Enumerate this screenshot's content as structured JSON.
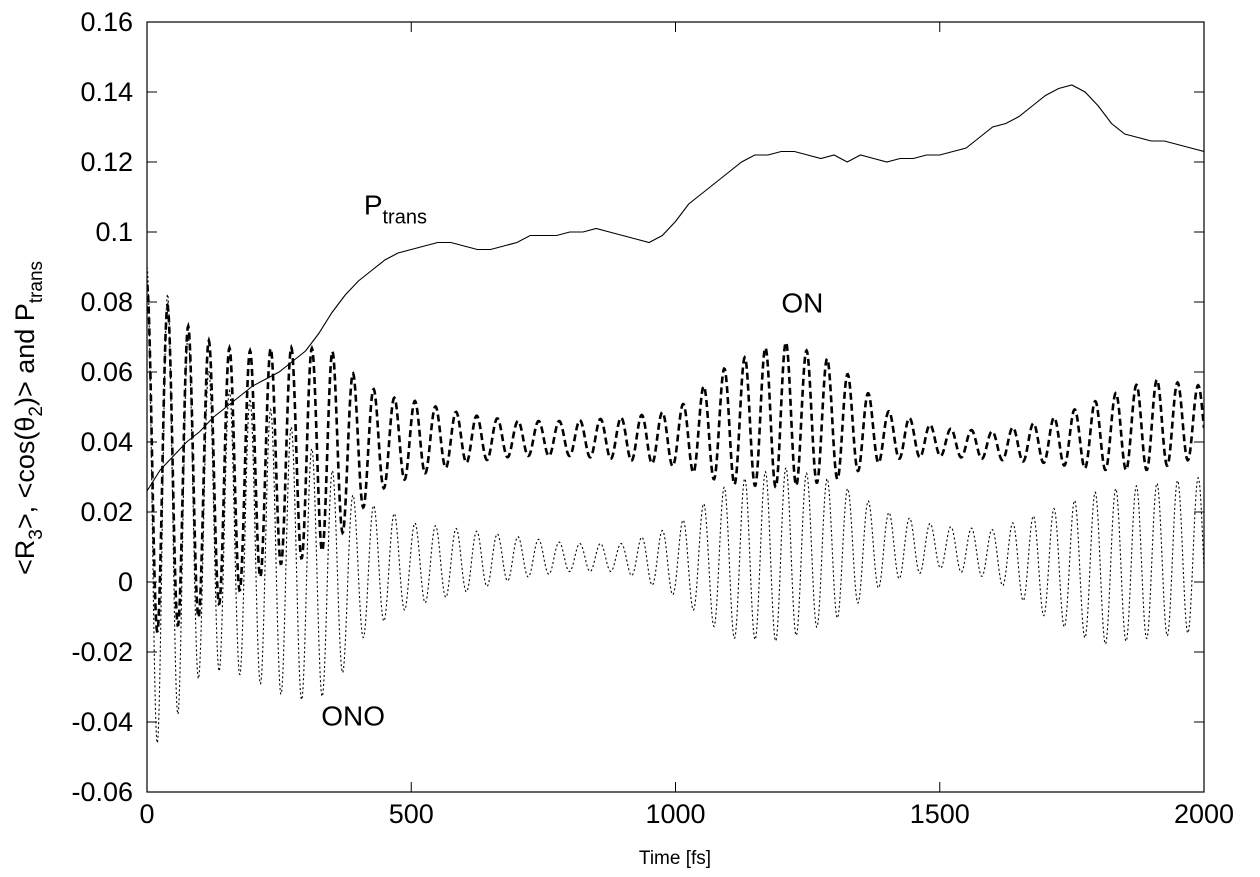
{
  "chart_data": {
    "type": "line",
    "title": "",
    "xlabel": "Time [fs]",
    "ylabel": {
      "parts": [
        {
          "text": "<R",
          "shift": "normal"
        },
        {
          "text": "3",
          "shift": "sub"
        },
        {
          "text": ">, <cos(θ",
          "shift": "normal"
        },
        {
          "text": "2",
          "shift": "sub"
        },
        {
          "text": ")> and P",
          "shift": "normal"
        },
        {
          "text": "trans",
          "shift": "sub"
        }
      ]
    },
    "xlim": [
      0,
      2000
    ],
    "ylim": [
      -0.06,
      0.16
    ],
    "x_ticks": [
      0,
      500,
      1000,
      1500,
      2000
    ],
    "x_tick_labels": [
      "0",
      "500",
      "1000",
      "1500",
      "2000"
    ],
    "y_ticks": [
      -0.06,
      -0.04,
      -0.02,
      0,
      0.02,
      0.04,
      0.06,
      0.08,
      0.1,
      0.12,
      0.14,
      0.16
    ],
    "y_tick_labels": [
      "-0.06",
      "-0.04",
      "-0.02",
      "0",
      "0.02",
      "0.04",
      "0.06",
      "0.08",
      "0.1",
      "0.12",
      "0.14",
      "0.16"
    ],
    "grid": false,
    "annotations": [
      {
        "id": "ptrans",
        "main": "P",
        "sub": "trans",
        "x": 470,
        "y": 0.105
      },
      {
        "id": "on",
        "main": "ON",
        "sub": "",
        "x": 1240,
        "y": 0.077
      },
      {
        "id": "ono",
        "main": "ONO",
        "sub": "",
        "x": 390,
        "y": -0.041
      }
    ],
    "series": [
      {
        "id": "ptrans",
        "style": "solid",
        "x": [
          0,
          25,
          50,
          75,
          100,
          125,
          150,
          175,
          200,
          225,
          250,
          275,
          300,
          325,
          350,
          375,
          400,
          425,
          450,
          475,
          500,
          525,
          550,
          575,
          600,
          625,
          650,
          675,
          700,
          725,
          750,
          775,
          800,
          825,
          850,
          875,
          900,
          925,
          950,
          975,
          1000,
          1025,
          1050,
          1075,
          1100,
          1125,
          1150,
          1175,
          1200,
          1225,
          1250,
          1275,
          1300,
          1325,
          1350,
          1375,
          1400,
          1425,
          1450,
          1475,
          1500,
          1525,
          1550,
          1575,
          1600,
          1625,
          1650,
          1675,
          1700,
          1725,
          1750,
          1775,
          1800,
          1825,
          1850,
          1875,
          1900,
          1925,
          1950,
          1975,
          2000
        ],
        "y": [
          0.026,
          0.032,
          0.036,
          0.04,
          0.043,
          0.047,
          0.05,
          0.053,
          0.056,
          0.058,
          0.06,
          0.063,
          0.066,
          0.071,
          0.077,
          0.082,
          0.086,
          0.089,
          0.092,
          0.094,
          0.095,
          0.096,
          0.097,
          0.097,
          0.096,
          0.095,
          0.095,
          0.096,
          0.097,
          0.099,
          0.099,
          0.099,
          0.1,
          0.1,
          0.101,
          0.1,
          0.099,
          0.098,
          0.097,
          0.099,
          0.103,
          0.108,
          0.111,
          0.114,
          0.117,
          0.12,
          0.122,
          0.122,
          0.123,
          0.123,
          0.122,
          0.121,
          0.122,
          0.12,
          0.122,
          0.121,
          0.12,
          0.121,
          0.121,
          0.122,
          0.122,
          0.123,
          0.124,
          0.127,
          0.13,
          0.131,
          0.133,
          0.136,
          0.139,
          0.141,
          0.142,
          0.14,
          0.136,
          0.131,
          0.128,
          0.127,
          0.126,
          0.126,
          0.125,
          0.124,
          0.123
        ]
      },
      {
        "id": "on",
        "style": "dashed",
        "center": {
          "x": [
            0,
            50,
            100,
            150,
            200,
            250,
            300,
            350,
            400,
            450,
            500,
            600,
            700,
            800,
            900,
            1000,
            1100,
            1200,
            1300,
            1400,
            1500,
            1600,
            1700,
            1800,
            1900,
            2000
          ],
          "y": [
            0.035,
            0.032,
            0.03,
            0.031,
            0.033,
            0.036,
            0.037,
            0.038,
            0.039,
            0.04,
            0.041,
            0.041,
            0.041,
            0.041,
            0.041,
            0.041,
            0.045,
            0.048,
            0.046,
            0.042,
            0.04,
            0.039,
            0.04,
            0.042,
            0.045,
            0.046
          ]
        },
        "amplitude": {
          "x": [
            0,
            50,
            100,
            150,
            200,
            250,
            300,
            350,
            400,
            450,
            500,
            600,
            700,
            800,
            900,
            1000,
            1100,
            1200,
            1300,
            1400,
            1500,
            1600,
            1700,
            1800,
            1900,
            2000
          ],
          "y": [
            0.05,
            0.045,
            0.04,
            0.036,
            0.033,
            0.031,
            0.03,
            0.028,
            0.019,
            0.013,
            0.011,
            0.007,
            0.005,
            0.005,
            0.006,
            0.008,
            0.017,
            0.021,
            0.017,
            0.007,
            0.004,
            0.004,
            0.006,
            0.01,
            0.013,
            0.01
          ]
        },
        "period": 39,
        "t_max": 2000
      },
      {
        "id": "ono",
        "style": "dotted",
        "center": {
          "x": [
            0,
            50,
            100,
            150,
            200,
            250,
            300,
            350,
            400,
            450,
            500,
            600,
            700,
            800,
            900,
            1000,
            1100,
            1200,
            1300,
            1400,
            1500,
            1600,
            1700,
            1800,
            1900,
            2000
          ],
          "y": [
            0.02,
            0.02,
            0.018,
            0.015,
            0.012,
            0.008,
            0.003,
            0.0,
            0.003,
            0.005,
            0.005,
            0.006,
            0.007,
            0.007,
            0.007,
            0.006,
            0.006,
            0.008,
            0.009,
            0.01,
            0.01,
            0.008,
            0.005,
            0.004,
            0.006,
            0.008
          ]
        },
        "amplitude": {
          "x": [
            0,
            50,
            100,
            150,
            200,
            250,
            300,
            350,
            400,
            450,
            500,
            600,
            700,
            800,
            900,
            1000,
            1100,
            1200,
            1300,
            1400,
            1500,
            1600,
            1700,
            1800,
            1900,
            2000
          ],
          "y": [
            0.07,
            0.06,
            0.045,
            0.04,
            0.04,
            0.04,
            0.037,
            0.032,
            0.02,
            0.016,
            0.012,
            0.009,
            0.006,
            0.004,
            0.004,
            0.01,
            0.022,
            0.025,
            0.02,
            0.01,
            0.006,
            0.007,
            0.015,
            0.022,
            0.022,
            0.022
          ]
        },
        "period": 39,
        "t_max": 2000
      }
    ]
  }
}
